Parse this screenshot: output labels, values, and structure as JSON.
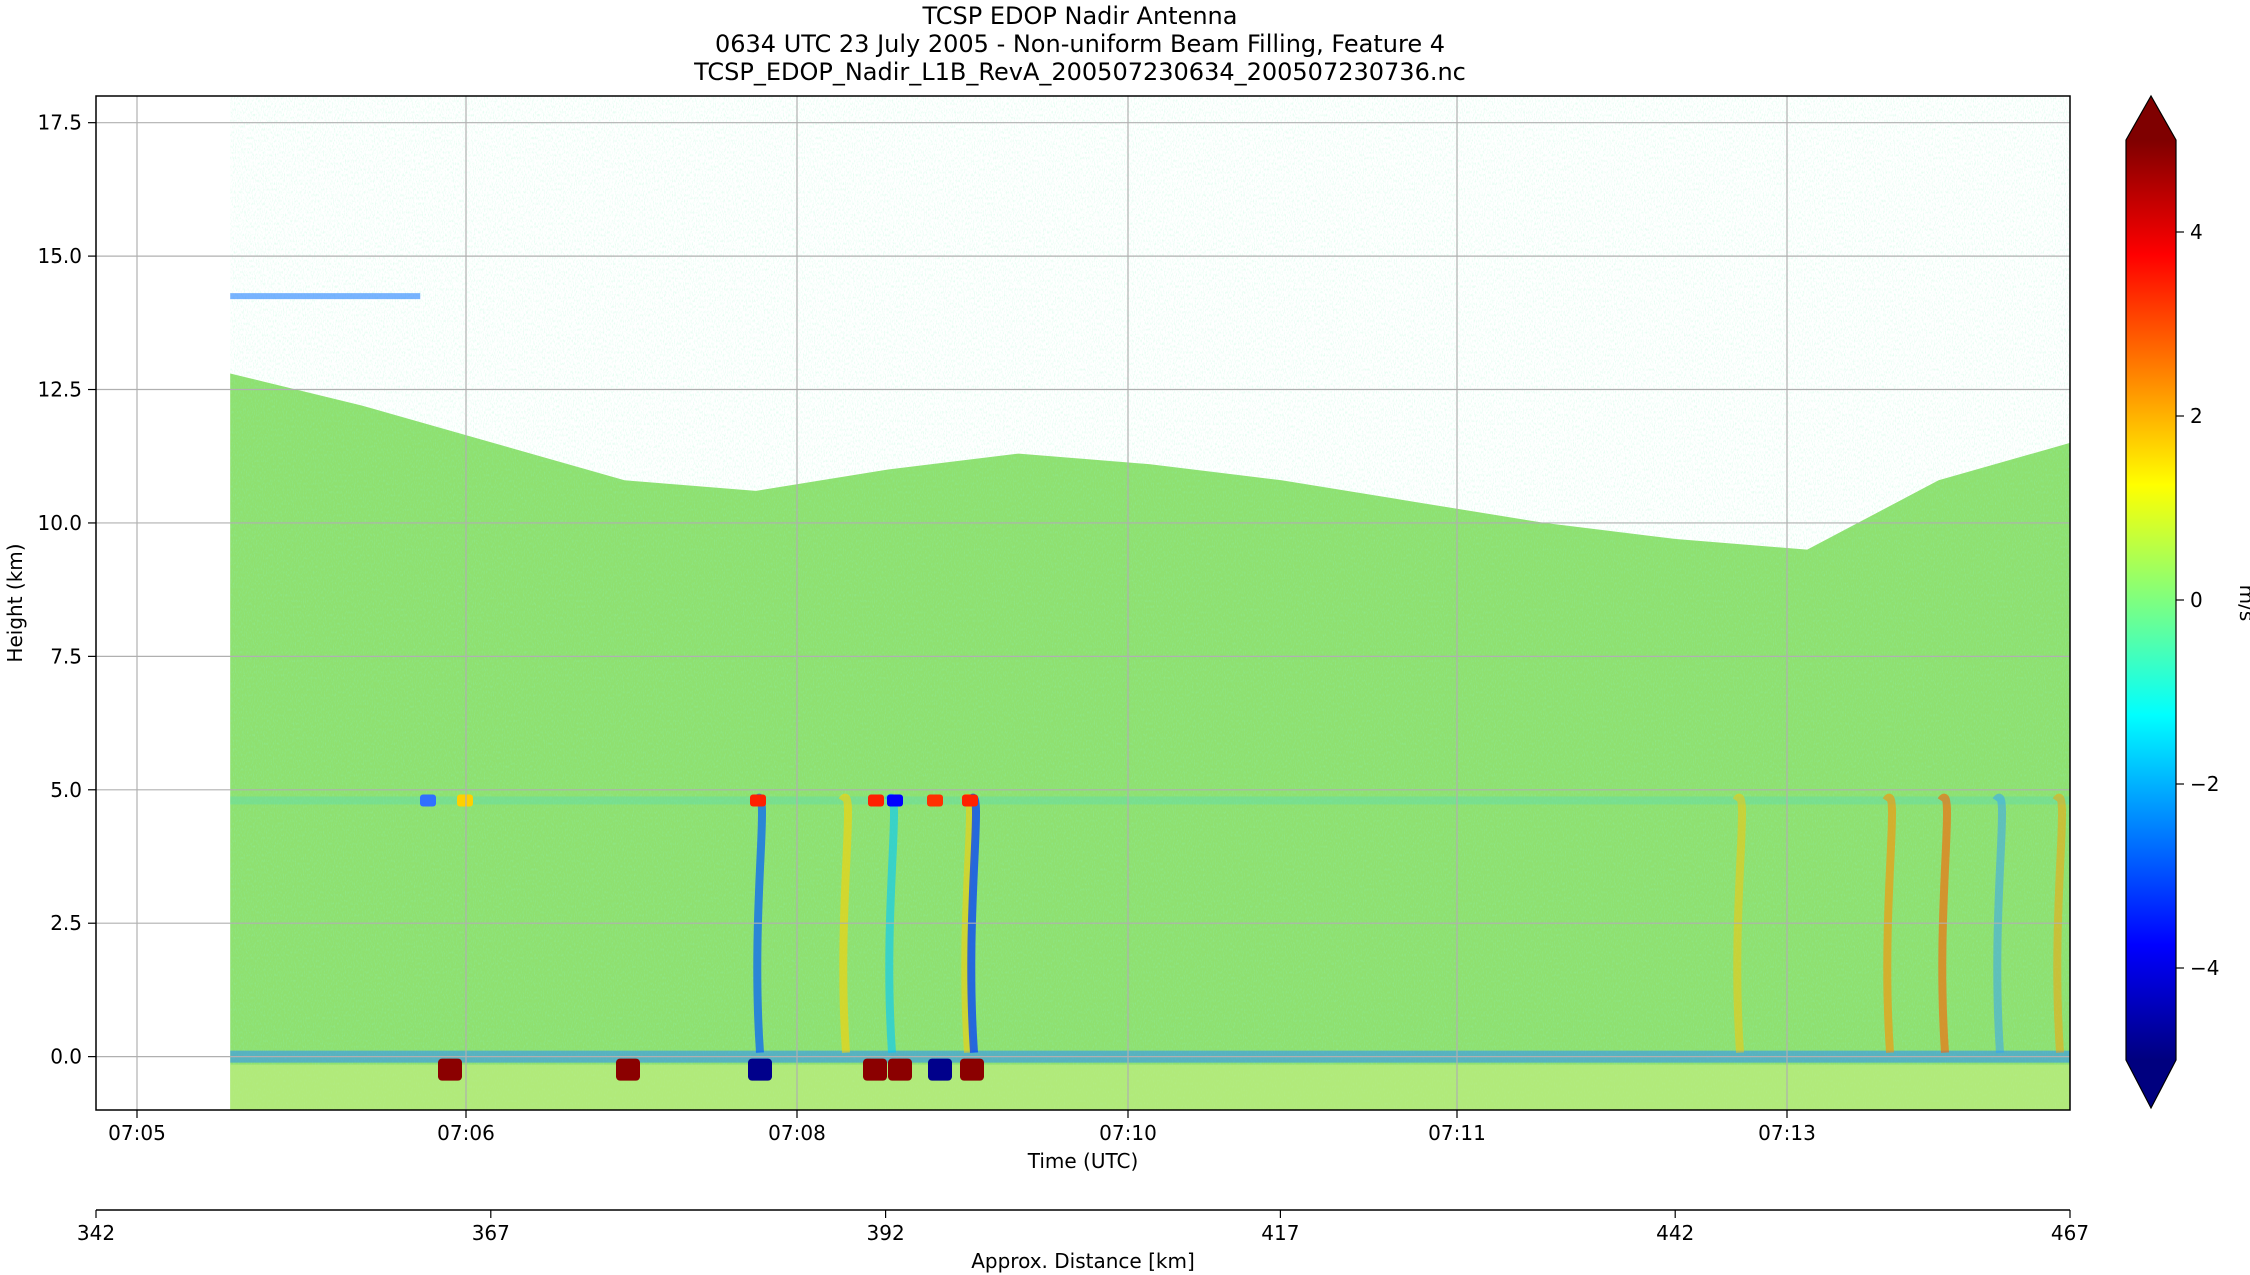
{
  "chart_data": {
    "type": "heatmap",
    "title": [
      "TCSP EDOP Nadir Antenna",
      "0634 UTC 23 July 2005 - Non-uniform Beam Filling, Feature 4",
      "TCSP_EDOP_Nadir_L1B_RevA_200507230634_200507230736.nc"
    ],
    "xlabel": "Time (UTC)",
    "ylabel": "Height (km)",
    "x2label": "Approx. Distance [km]",
    "colorbar_label": "m/s",
    "x_ticks": [
      "07:05",
      "07:06",
      "07:08",
      "07:10",
      "07:11",
      "07:13"
    ],
    "y_ticks": [
      "0.0",
      "2.5",
      "5.0",
      "7.5",
      "10.0",
      "12.5",
      "15.0",
      "17.5"
    ],
    "y_tick_values": [
      0,
      2.5,
      5,
      7.5,
      10,
      12.5,
      15,
      17.5
    ],
    "ylim": [
      -1,
      18
    ],
    "x2_ticks": [
      "342",
      "367",
      "392",
      "417",
      "442",
      "467"
    ],
    "x2_tick_values": [
      342,
      367,
      392,
      417,
      442,
      467
    ],
    "x2lim": [
      342,
      467
    ],
    "colorbar_ticks": [
      "4",
      "2",
      "0",
      "−2",
      "−4"
    ],
    "colorbar_tick_values": [
      4,
      2,
      0,
      -2,
      -4
    ],
    "clim": [
      -5,
      5
    ],
    "colorbar_extend": "both",
    "colormap": "jet",
    "grid": true,
    "data_x_range_km": [
      350.5,
      467
    ],
    "cloud_top_km": [
      12.8,
      12.2,
      11.5,
      10.8,
      10.6,
      11.0,
      11.3,
      11.1,
      10.8,
      10.4,
      10.0,
      9.7,
      9.5,
      10.8,
      11.5
    ],
    "surface_km": 0.0,
    "bright_band_km": 4.8,
    "plot_background": "#8fe070"
  }
}
